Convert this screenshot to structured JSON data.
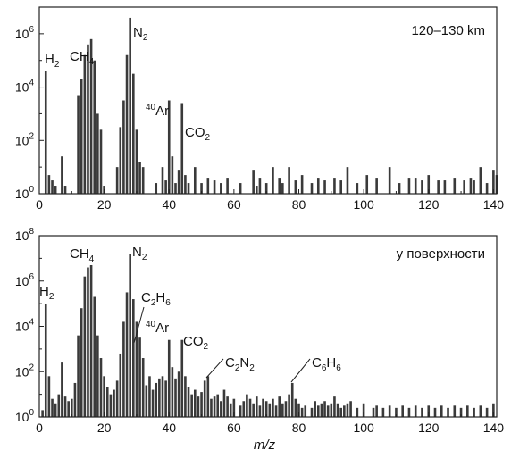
{
  "chart_data": [
    {
      "type": "bar",
      "panel_label": "120–130 km",
      "xlabel": "",
      "ylabel": "",
      "xlim": [
        0,
        141
      ],
      "ylim_log10": [
        0,
        7
      ],
      "x_ticks": [
        "0",
        "20",
        "40",
        "60",
        "80",
        "100",
        "120",
        "140"
      ],
      "y_ticks": [
        {
          "base": "10",
          "exp": "0"
        },
        {
          "base": "10",
          "exp": "2"
        },
        {
          "base": "10",
          "exp": "4"
        },
        {
          "base": "10",
          "exp": "6"
        }
      ],
      "annotations": [
        {
          "id": "h2",
          "main": "H",
          "sub": "2",
          "sup": "",
          "tail": "",
          "main2": "",
          "sub2": "",
          "x": 2
        },
        {
          "id": "ch4",
          "main": "CH",
          "sub": "4",
          "sup": "",
          "tail": "",
          "main2": "",
          "sub2": "",
          "x": 16
        },
        {
          "id": "n2",
          "main": "N",
          "sub": "2",
          "sup": "",
          "tail": "",
          "main2": "",
          "sub2": "",
          "x": 28
        },
        {
          "id": "ar40",
          "main": "",
          "sub": "",
          "sup": "40",
          "tail": "Ar",
          "main2": "",
          "sub2": "",
          "x": 40
        },
        {
          "id": "co2",
          "main": "CO",
          "sub": "2",
          "sup": "",
          "tail": "",
          "main2": "",
          "sub2": "",
          "x": 44
        }
      ],
      "log10_values": [
        [
          1,
          0
        ],
        [
          2,
          4.6
        ],
        [
          3,
          0.7
        ],
        [
          4,
          0.5
        ],
        [
          5,
          0.3
        ],
        [
          7,
          1.4
        ],
        [
          8,
          0.3
        ],
        [
          12,
          3.7
        ],
        [
          13,
          4.3
        ],
        [
          14,
          5.2
        ],
        [
          15,
          5.6
        ],
        [
          16,
          5.8
        ],
        [
          17,
          5.0
        ],
        [
          18,
          3.0
        ],
        [
          19,
          2.4
        ],
        [
          20,
          0.3
        ],
        [
          24,
          1.0
        ],
        [
          25,
          2.5
        ],
        [
          26,
          3.5
        ],
        [
          27,
          5.2
        ],
        [
          28,
          6.6
        ],
        [
          29,
          4.5
        ],
        [
          30,
          2.4
        ],
        [
          31,
          1.2
        ],
        [
          32,
          1.0
        ],
        [
          36,
          0.4
        ],
        [
          38,
          1.0
        ],
        [
          39,
          0.5
        ],
        [
          40,
          3.5
        ],
        [
          41,
          1.4
        ],
        [
          42,
          0.4
        ],
        [
          43,
          0.9
        ],
        [
          44,
          3.4
        ],
        [
          45,
          0.7
        ],
        [
          46,
          0.4
        ],
        [
          48,
          1.0
        ],
        [
          50,
          0.4
        ],
        [
          52,
          0.6
        ],
        [
          54,
          0.5
        ],
        [
          56,
          0.4
        ],
        [
          58,
          0.6
        ],
        [
          62,
          0.4
        ],
        [
          66,
          0.9
        ],
        [
          67,
          0.3
        ],
        [
          68,
          0.6
        ],
        [
          70,
          0.4
        ],
        [
          72,
          1.0
        ],
        [
          74,
          0.6
        ],
        [
          75,
          0.4
        ],
        [
          77,
          1.0
        ],
        [
          79,
          0.5
        ],
        [
          81,
          0.7
        ],
        [
          84,
          0.4
        ],
        [
          86,
          0.6
        ],
        [
          88,
          0.5
        ],
        [
          91,
          0.6
        ],
        [
          93,
          0.5
        ],
        [
          95,
          1.0
        ],
        [
          98,
          0.4
        ],
        [
          101,
          0.7
        ],
        [
          104,
          0.6
        ],
        [
          108,
          1.0
        ],
        [
          111,
          0.4
        ],
        [
          114,
          0.6
        ],
        [
          116,
          0.6
        ],
        [
          118,
          0.5
        ],
        [
          120,
          0.7
        ],
        [
          123,
          0.5
        ],
        [
          125,
          0.5
        ],
        [
          128,
          0.6
        ],
        [
          131,
          0.5
        ],
        [
          133,
          0.6
        ],
        [
          134,
          0.5
        ],
        [
          136,
          1.0
        ],
        [
          138,
          0.4
        ],
        [
          140,
          0.9
        ],
        [
          141,
          0.7
        ]
      ]
    },
    {
      "type": "bar",
      "panel_label": "у поверхности",
      "xlabel": "m/z",
      "ylabel": "",
      "xlim": [
        0,
        141
      ],
      "ylim_log10": [
        0,
        8
      ],
      "x_ticks": [
        "0",
        "20",
        "40",
        "60",
        "80",
        "100",
        "120",
        "140"
      ],
      "y_ticks": [
        {
          "base": "10",
          "exp": "0"
        },
        {
          "base": "10",
          "exp": "2"
        },
        {
          "base": "10",
          "exp": "4"
        },
        {
          "base": "10",
          "exp": "6"
        },
        {
          "base": "10",
          "exp": "8"
        }
      ],
      "annotations": [
        {
          "id": "h2",
          "main": "H",
          "sub": "2",
          "sup": "",
          "tail": "",
          "main2": "",
          "sub2": "",
          "x": 2
        },
        {
          "id": "ch4",
          "main": "CH",
          "sub": "4",
          "sup": "",
          "tail": "",
          "main2": "",
          "sub2": "",
          "x": 16
        },
        {
          "id": "n2",
          "main": "N",
          "sub": "2",
          "sup": "",
          "tail": "",
          "main2": "",
          "sub2": "",
          "x": 28
        },
        {
          "id": "c2h6",
          "main": "C",
          "sub": "2",
          "sup": "",
          "tail": "",
          "main2": "H",
          "sub2": "6",
          "x": 30
        },
        {
          "id": "ar40",
          "main": "",
          "sub": "",
          "sup": "40",
          "tail": "Ar",
          "main2": "",
          "sub2": "",
          "x": 40
        },
        {
          "id": "co2",
          "main": "CO",
          "sub": "2",
          "sup": "",
          "tail": "",
          "main2": "",
          "sub2": "",
          "x": 44
        },
        {
          "id": "c2n2",
          "main": "C",
          "sub": "2",
          "sup": "",
          "tail": "",
          "main2": "N",
          "sub2": "2",
          "x": 52
        },
        {
          "id": "c6h6",
          "main": "C",
          "sub": "6",
          "sup": "",
          "tail": "",
          "main2": "H",
          "sub2": "6",
          "x": 78
        }
      ],
      "log10_values": [
        [
          1,
          0.3
        ],
        [
          2,
          5.0
        ],
        [
          3,
          1.8
        ],
        [
          4,
          0.8
        ],
        [
          5,
          0.6
        ],
        [
          6,
          1.0
        ],
        [
          7,
          2.4
        ],
        [
          8,
          0.9
        ],
        [
          9,
          0.7
        ],
        [
          10,
          0.8
        ],
        [
          11,
          1.5
        ],
        [
          12,
          3.6
        ],
        [
          13,
          4.8
        ],
        [
          14,
          6.2
        ],
        [
          15,
          6.6
        ],
        [
          16,
          6.7
        ],
        [
          17,
          5.3
        ],
        [
          18,
          3.6
        ],
        [
          19,
          2.6
        ],
        [
          20,
          1.8
        ],
        [
          21,
          1.3
        ],
        [
          22,
          1.0
        ],
        [
          23,
          1.2
        ],
        [
          24,
          1.6
        ],
        [
          25,
          2.8
        ],
        [
          26,
          4.2
        ],
        [
          27,
          5.5
        ],
        [
          28,
          7.2
        ],
        [
          29,
          5.2
        ],
        [
          30,
          4.2
        ],
        [
          31,
          3.5
        ],
        [
          32,
          2.6
        ],
        [
          33,
          1.4
        ],
        [
          34,
          1.8
        ],
        [
          35,
          1.2
        ],
        [
          36,
          1.5
        ],
        [
          37,
          1.7
        ],
        [
          38,
          1.8
        ],
        [
          39,
          1.6
        ],
        [
          40,
          3.4
        ],
        [
          41,
          2.2
        ],
        [
          42,
          1.7
        ],
        [
          43,
          2.0
        ],
        [
          44,
          3.4
        ],
        [
          45,
          1.8
        ],
        [
          46,
          1.3
        ],
        [
          47,
          1.0
        ],
        [
          48,
          1.2
        ],
        [
          49,
          0.9
        ],
        [
          50,
          1.1
        ],
        [
          51,
          1.6
        ],
        [
          52,
          1.8
        ],
        [
          53,
          0.8
        ],
        [
          54,
          0.9
        ],
        [
          55,
          1.0
        ],
        [
          56,
          0.7
        ],
        [
          57,
          1.2
        ],
        [
          58,
          0.9
        ],
        [
          59,
          0.6
        ],
        [
          60,
          0.8
        ],
        [
          62,
          0.5
        ],
        [
          63,
          0.7
        ],
        [
          64,
          1.0
        ],
        [
          65,
          0.8
        ],
        [
          66,
          0.6
        ],
        [
          67,
          0.9
        ],
        [
          68,
          0.5
        ],
        [
          69,
          0.8
        ],
        [
          70,
          0.7
        ],
        [
          71,
          0.6
        ],
        [
          72,
          0.8
        ],
        [
          73,
          0.5
        ],
        [
          74,
          0.9
        ],
        [
          75,
          0.6
        ],
        [
          76,
          0.7
        ],
        [
          77,
          1.0
        ],
        [
          78,
          1.5
        ],
        [
          79,
          0.8
        ],
        [
          80,
          0.6
        ],
        [
          81,
          0.4
        ],
        [
          82,
          0.5
        ],
        [
          84,
          0.4
        ],
        [
          85,
          0.7
        ],
        [
          86,
          0.5
        ],
        [
          87,
          0.6
        ],
        [
          88,
          0.7
        ],
        [
          89,
          0.5
        ],
        [
          90,
          0.6
        ],
        [
          91,
          0.9
        ],
        [
          92,
          0.6
        ],
        [
          93,
          0.4
        ],
        [
          94,
          0.5
        ],
        [
          95,
          0.6
        ],
        [
          96,
          0.7
        ],
        [
          98,
          0.4
        ],
        [
          100,
          0.6
        ],
        [
          103,
          0.4
        ],
        [
          104,
          0.5
        ],
        [
          106,
          0.4
        ],
        [
          108,
          0.5
        ],
        [
          110,
          0.4
        ],
        [
          112,
          0.5
        ],
        [
          114,
          0.4
        ],
        [
          116,
          0.5
        ],
        [
          118,
          0.4
        ],
        [
          120,
          0.5
        ],
        [
          122,
          0.4
        ],
        [
          124,
          0.5
        ],
        [
          126,
          0.4
        ],
        [
          128,
          0.5
        ],
        [
          130,
          0.4
        ],
        [
          132,
          0.5
        ],
        [
          134,
          0.4
        ],
        [
          136,
          0.5
        ],
        [
          138,
          0.4
        ],
        [
          140,
          0.6
        ]
      ]
    }
  ]
}
